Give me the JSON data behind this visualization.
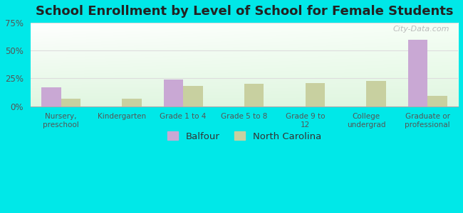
{
  "title": "School Enrollment by Level of School for Female Students",
  "categories": [
    "Nursery,\npreschool",
    "Kindergarten",
    "Grade 1 to 4",
    "Grade 5 to 8",
    "Grade 9 to\n12",
    "College\nundergrad",
    "Graduate or\nprofessional"
  ],
  "balfour": [
    17,
    0,
    24,
    0,
    0,
    0,
    60
  ],
  "north_carolina": [
    7,
    7,
    18,
    20,
    21,
    23,
    9
  ],
  "balfour_color": "#c9a8d4",
  "nc_color": "#c8d0a0",
  "background_outer": "#00e8e8",
  "ylim": [
    0,
    75
  ],
  "yticks": [
    0,
    25,
    50,
    75
  ],
  "ytick_labels": [
    "0%",
    "25%",
    "50%",
    "75%"
  ],
  "title_fontsize": 13,
  "legend_labels": [
    "Balfour",
    "North Carolina"
  ],
  "grid_color": "#dddddd",
  "watermark": "City-Data.com"
}
